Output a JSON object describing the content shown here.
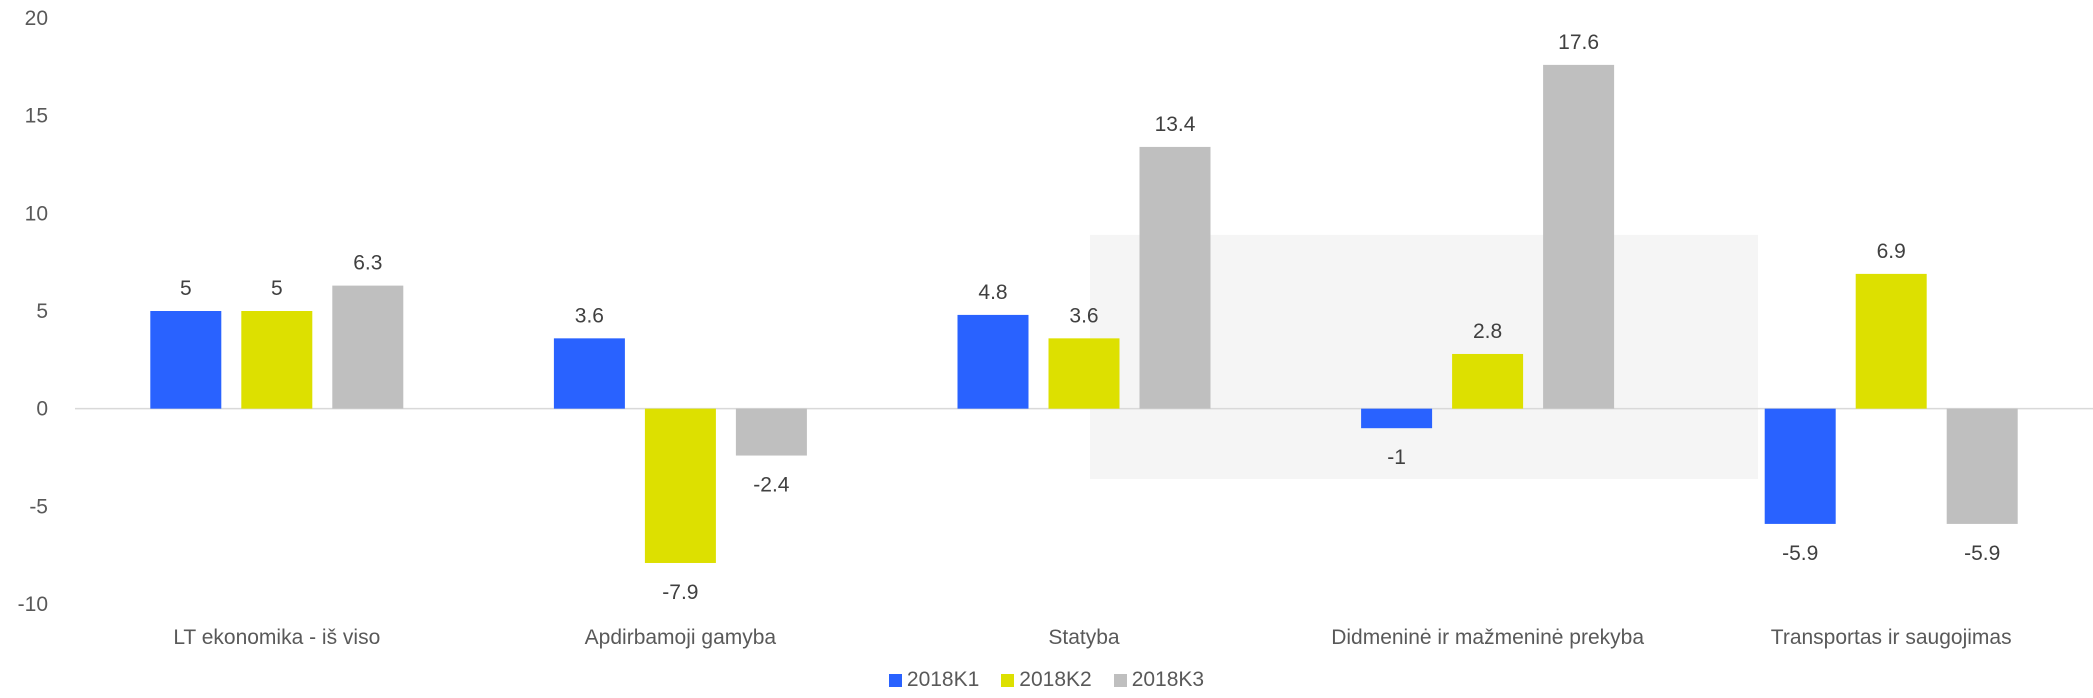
{
  "chart_data": {
    "type": "bar",
    "categories": [
      "LT ekonomika - iš viso",
      "Apdirbamoji gamyba",
      "Statyba",
      "Didmeninė ir mažmeninė prekyba",
      "Transportas ir saugojimas"
    ],
    "series": [
      {
        "name": "2018K1",
        "color": "#2962ff",
        "values": [
          5,
          3.6,
          4.8,
          -1,
          -5.9
        ]
      },
      {
        "name": "2018K2",
        "color": "#dde000",
        "values": [
          5,
          -7.9,
          3.6,
          2.8,
          6.9
        ]
      },
      {
        "name": "2018K3",
        "color": "#bfbfbf",
        "values": [
          6.3,
          -2.4,
          13.4,
          17.6,
          -5.9
        ]
      }
    ],
    "ylim": [
      -10,
      20
    ],
    "yticks": [
      "-10",
      "-5",
      "0",
      "5",
      "10",
      "15",
      "20"
    ],
    "grid": false,
    "legend_position": "bottom"
  }
}
